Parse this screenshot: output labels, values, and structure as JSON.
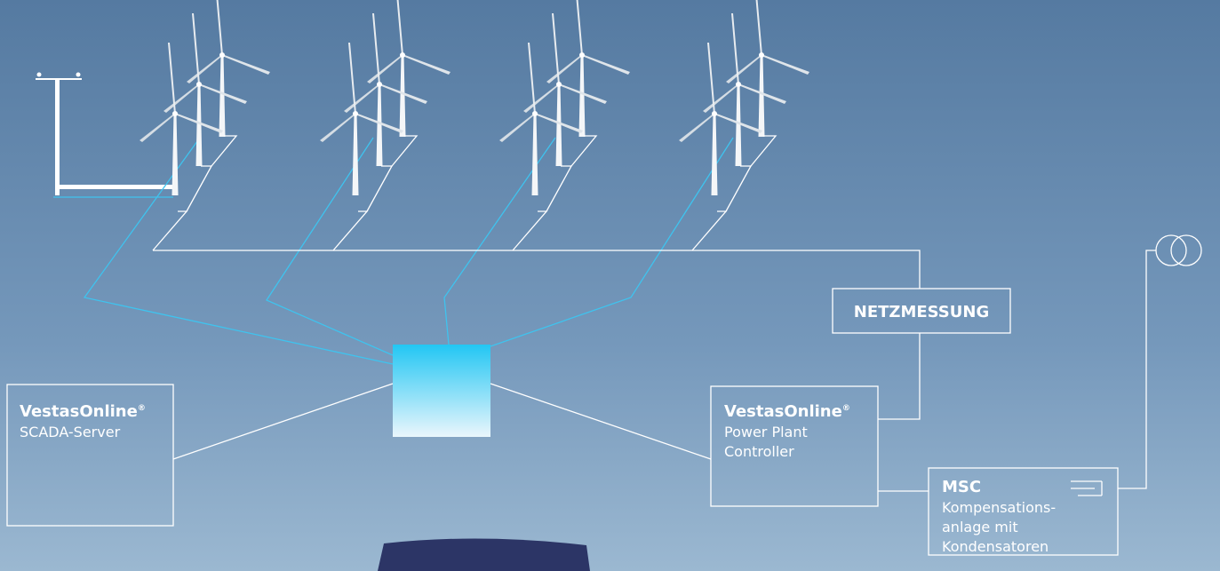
{
  "scada_box": {
    "title": "VestasOnline",
    "mark": "®",
    "subtitle": "SCADA-Server"
  },
  "ppc_box": {
    "title": "VestasOnline",
    "mark": "®",
    "lines": [
      "Power Plant",
      "Controller"
    ]
  },
  "netz_box": {
    "label": "NETZMESSUNG"
  },
  "msc_box": {
    "title": "MSC",
    "lines": [
      "Kompensations-",
      "anlage mit",
      "Kondensatoren"
    ]
  }
}
